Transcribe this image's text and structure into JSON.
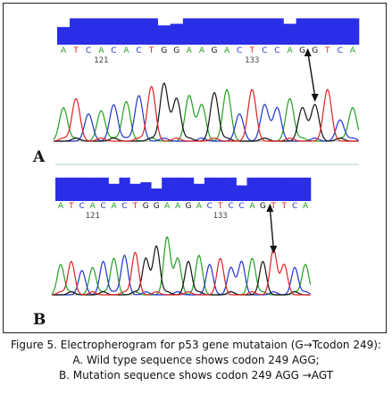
{
  "caption": {
    "line1": "Figure 5. Electropherogram for p53 gene mutataion (G→Tcodon 249):",
    "line2": "A. Wild type sequence shows codon 249 AGG;",
    "line3": "B. Mutation sequence shows codon 249 AGG →AGT"
  },
  "colors": {
    "A": "#22a022",
    "C": "#2233cc",
    "G": "#111111",
    "T": "#dd2222",
    "quality_bar": "#2a2ee6",
    "arrow": "#111111"
  },
  "chart_data": [
    {
      "type": "line",
      "panel": "A",
      "label": "A",
      "sequence": "ATCACACTGGAAGACTCCAGGTCA",
      "position_ticks": [
        121,
        133
      ],
      "position_tick_index": [
        3,
        15
      ],
      "quality": [
        0.55,
        0.82,
        0.82,
        0.82,
        0.82,
        0.82,
        0.82,
        0.82,
        0.6,
        0.65,
        0.82,
        0.82,
        0.82,
        0.82,
        0.82,
        0.82,
        0.82,
        0.82,
        0.65,
        0.82,
        0.82,
        0.82,
        0.82,
        0.82
      ],
      "peak_heights": [
        0.55,
        0.7,
        0.45,
        0.5,
        0.6,
        0.65,
        0.75,
        0.9,
        0.95,
        0.7,
        0.75,
        0.6,
        0.8,
        0.85,
        0.45,
        0.85,
        0.6,
        0.55,
        0.7,
        0.55,
        0.6,
        0.85,
        0.35,
        0.55
      ],
      "arrow_base_index": 20
    },
    {
      "type": "line",
      "panel": "B",
      "label": "B",
      "sequence": "ATCACACTGGAAGACTCCAGTTCA",
      "position_ticks": [
        121,
        133
      ],
      "position_tick_index": [
        3,
        15
      ],
      "quality": [
        0.75,
        0.75,
        0.75,
        0.75,
        0.75,
        0.55,
        0.75,
        0.55,
        0.6,
        0.4,
        0.75,
        0.75,
        0.75,
        0.55,
        0.75,
        0.75,
        0.75,
        0.5,
        0.75,
        0.75,
        0.75,
        0.75,
        0.75,
        0.75
      ],
      "peak_heights": [
        0.5,
        0.55,
        0.4,
        0.45,
        0.55,
        0.6,
        0.65,
        0.7,
        0.6,
        0.8,
        0.95,
        0.6,
        0.55,
        0.65,
        0.5,
        0.6,
        0.45,
        0.55,
        0.6,
        0.55,
        0.75,
        0.5,
        0.45,
        0.5
      ],
      "arrow_base_index": 20
    }
  ]
}
